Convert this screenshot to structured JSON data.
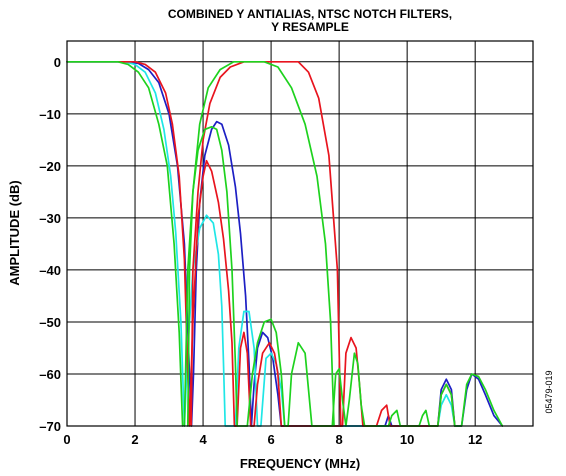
{
  "chart_data": {
    "type": "line",
    "title_line1": "COMBINED Y ANTIALIAS, NTSC NOTCH FILTERS,",
    "title_line2": "Y RESAMPLE",
    "xlabel": "FREQUENCY (MHz)",
    "ylabel": "AMPLITUDE (dB)",
    "figure_id": "05479-019",
    "xlim": [
      0,
      13.7
    ],
    "ylim": [
      -70,
      4
    ],
    "grid": true,
    "x_ticks": [
      0,
      2,
      4,
      6,
      8,
      10,
      12
    ],
    "x_tick_labels": [
      "0",
      "2",
      "4",
      "6",
      "8",
      "10",
      "12"
    ],
    "y_ticks": [
      0,
      -10,
      -20,
      -30,
      -40,
      -50,
      -60,
      -70
    ],
    "y_tick_labels": [
      "0",
      "–10",
      "–20",
      "–30",
      "–40",
      "–50",
      "–60",
      "–70"
    ],
    "colors": {
      "red": "#e8141e",
      "blue": "#1d1fc4",
      "cyan": "#1fe6e6",
      "green": "#1ed21e"
    },
    "series": [
      {
        "color": "blue",
        "points": [
          [
            0,
            0
          ],
          [
            1.8,
            0
          ],
          [
            2.1,
            -0.3
          ],
          [
            2.4,
            -1.5
          ],
          [
            2.7,
            -4
          ],
          [
            3.0,
            -10
          ],
          [
            3.25,
            -20
          ],
          [
            3.45,
            -35
          ],
          [
            3.6,
            -60
          ],
          [
            3.66,
            -70
          ],
          [
            3.72,
            -60
          ],
          [
            3.8,
            -40
          ],
          [
            3.9,
            -27
          ],
          [
            4.05,
            -18
          ],
          [
            4.25,
            -13
          ],
          [
            4.4,
            -11.5
          ],
          [
            4.55,
            -12
          ],
          [
            4.75,
            -16
          ],
          [
            4.95,
            -24
          ],
          [
            5.1,
            -33
          ],
          [
            5.25,
            -45
          ],
          [
            5.35,
            -58
          ],
          [
            5.42,
            -70
          ],
          [
            5.5,
            -62
          ],
          [
            5.6,
            -55
          ],
          [
            5.75,
            -52
          ],
          [
            5.9,
            -53
          ],
          [
            6.05,
            -57
          ],
          [
            6.2,
            -64
          ],
          [
            6.3,
            -70
          ],
          [
            9.35,
            -70
          ],
          [
            9.45,
            -68
          ],
          [
            9.55,
            -70
          ],
          [
            10.9,
            -70
          ],
          [
            11.0,
            -63
          ],
          [
            11.15,
            -61
          ],
          [
            11.3,
            -63
          ],
          [
            11.4,
            -70
          ],
          [
            11.6,
            -70
          ],
          [
            11.75,
            -63
          ],
          [
            11.9,
            -60
          ],
          [
            12.1,
            -61
          ],
          [
            12.3,
            -64
          ],
          [
            12.55,
            -68
          ],
          [
            12.8,
            -70
          ]
        ]
      },
      {
        "color": "cyan",
        "points": [
          [
            0,
            0
          ],
          [
            1.7,
            0
          ],
          [
            2.0,
            -0.5
          ],
          [
            2.3,
            -2
          ],
          [
            2.6,
            -6
          ],
          [
            2.85,
            -13
          ],
          [
            3.05,
            -22
          ],
          [
            3.2,
            -33
          ],
          [
            3.35,
            -50
          ],
          [
            3.45,
            -70
          ],
          [
            3.55,
            -55
          ],
          [
            3.7,
            -40
          ],
          [
            3.9,
            -32
          ],
          [
            4.1,
            -29.5
          ],
          [
            4.3,
            -31
          ],
          [
            4.45,
            -37
          ],
          [
            4.55,
            -47
          ],
          [
            4.6,
            -58
          ],
          [
            4.65,
            -70
          ],
          [
            4.95,
            -70
          ],
          [
            5.05,
            -55
          ],
          [
            5.2,
            -48
          ],
          [
            5.35,
            -48
          ],
          [
            5.5,
            -55
          ],
          [
            5.6,
            -70
          ],
          [
            5.7,
            -70
          ],
          [
            5.85,
            -57
          ],
          [
            6.0,
            -56
          ],
          [
            6.15,
            -58
          ],
          [
            6.3,
            -63
          ],
          [
            6.4,
            -70
          ],
          [
            10.9,
            -70
          ],
          [
            11.0,
            -66
          ],
          [
            11.15,
            -64
          ],
          [
            11.3,
            -66
          ],
          [
            11.4,
            -70
          ]
        ]
      },
      {
        "color": "red",
        "points": [
          [
            0,
            0
          ],
          [
            2.0,
            0
          ],
          [
            2.3,
            -0.5
          ],
          [
            2.6,
            -2
          ],
          [
            2.9,
            -6
          ],
          [
            3.1,
            -12
          ],
          [
            3.3,
            -22
          ],
          [
            3.45,
            -38
          ],
          [
            3.55,
            -60
          ],
          [
            3.6,
            -70
          ],
          [
            3.7,
            -50
          ],
          [
            3.85,
            -30
          ],
          [
            4.0,
            -22
          ],
          [
            4.1,
            -19
          ],
          [
            4.25,
            -21
          ],
          [
            4.45,
            -27
          ],
          [
            4.6,
            -34
          ],
          [
            4.75,
            -44
          ],
          [
            4.85,
            -54
          ],
          [
            4.92,
            -70
          ],
          [
            5.0,
            -70
          ],
          [
            5.1,
            -55
          ],
          [
            5.2,
            -52
          ],
          [
            5.3,
            -56
          ],
          [
            5.4,
            -70
          ],
          [
            5.5,
            -70
          ],
          [
            5.6,
            -62
          ],
          [
            5.75,
            -56
          ],
          [
            5.95,
            -54
          ],
          [
            6.1,
            -56
          ],
          [
            6.2,
            -60
          ],
          [
            6.3,
            -70
          ],
          [
            8.1,
            -70
          ],
          [
            8.2,
            -56
          ],
          [
            8.35,
            -53
          ],
          [
            8.5,
            -55
          ],
          [
            8.6,
            -62
          ],
          [
            8.7,
            -70
          ],
          [
            9.1,
            -70
          ],
          [
            9.25,
            -67
          ],
          [
            9.4,
            -66
          ],
          [
            9.5,
            -70
          ],
          [
            10.9,
            -70
          ],
          [
            11.0,
            -64
          ],
          [
            11.15,
            -62
          ],
          [
            11.3,
            -64
          ],
          [
            11.4,
            -70
          ]
        ]
      },
      {
        "color": "red",
        "points": [
          [
            3.65,
            -70
          ],
          [
            3.7,
            -40
          ],
          [
            3.85,
            -25
          ],
          [
            4.0,
            -15
          ],
          [
            4.2,
            -8
          ],
          [
            4.5,
            -3
          ],
          [
            4.8,
            -1
          ],
          [
            5.2,
            0
          ],
          [
            6.8,
            0
          ],
          [
            7.1,
            -2
          ],
          [
            7.4,
            -7
          ],
          [
            7.7,
            -18
          ],
          [
            7.95,
            -40
          ],
          [
            8.05,
            -70
          ]
        ]
      },
      {
        "color": "green",
        "points": [
          [
            0,
            0
          ],
          [
            1.5,
            0
          ],
          [
            1.8,
            -0.5
          ],
          [
            2.1,
            -2
          ],
          [
            2.4,
            -5
          ],
          [
            2.7,
            -12
          ],
          [
            2.95,
            -20
          ],
          [
            3.15,
            -35
          ],
          [
            3.3,
            -52
          ],
          [
            3.4,
            -70
          ]
        ]
      },
      {
        "color": "green",
        "points": [
          [
            3.55,
            -70
          ],
          [
            3.6,
            -40
          ],
          [
            3.7,
            -25
          ],
          [
            3.85,
            -17
          ],
          [
            4.05,
            -13
          ],
          [
            4.25,
            -12.5
          ],
          [
            4.4,
            -13
          ],
          [
            4.55,
            -17
          ],
          [
            4.7,
            -25
          ],
          [
            4.85,
            -40
          ],
          [
            4.95,
            -58
          ],
          [
            5.0,
            -70
          ],
          [
            5.3,
            -70
          ],
          [
            5.45,
            -60
          ],
          [
            5.6,
            -54
          ],
          [
            5.8,
            -50
          ],
          [
            6.0,
            -49.5
          ],
          [
            6.15,
            -52
          ],
          [
            6.3,
            -60
          ],
          [
            6.4,
            -70
          ],
          [
            6.5,
            -70
          ],
          [
            6.6,
            -60
          ],
          [
            6.8,
            -54
          ],
          [
            7.0,
            -56
          ],
          [
            7.1,
            -63
          ],
          [
            7.2,
            -70
          ],
          [
            7.8,
            -70
          ],
          [
            7.9,
            -60
          ],
          [
            8.0,
            -59
          ],
          [
            8.1,
            -65
          ],
          [
            8.2,
            -70
          ],
          [
            8.3,
            -65
          ],
          [
            8.45,
            -56
          ],
          [
            8.55,
            -58
          ],
          [
            8.65,
            -66
          ],
          [
            8.75,
            -70
          ],
          [
            9.45,
            -70
          ],
          [
            9.55,
            -68
          ],
          [
            9.7,
            -67
          ],
          [
            9.8,
            -70
          ],
          [
            10.35,
            -70
          ],
          [
            10.45,
            -68
          ],
          [
            10.55,
            -67
          ],
          [
            10.65,
            -70
          ],
          [
            10.9,
            -70
          ],
          [
            11.0,
            -64
          ],
          [
            11.15,
            -62
          ],
          [
            11.3,
            -64
          ],
          [
            11.4,
            -70
          ],
          [
            11.6,
            -70
          ],
          [
            11.75,
            -62
          ],
          [
            11.9,
            -60
          ],
          [
            12.1,
            -60.5
          ],
          [
            12.3,
            -63
          ],
          [
            12.55,
            -67
          ],
          [
            12.8,
            -70
          ]
        ]
      },
      {
        "color": "green",
        "points": [
          [
            3.45,
            -70
          ],
          [
            3.55,
            -40
          ],
          [
            3.7,
            -25
          ],
          [
            3.9,
            -12
          ],
          [
            4.15,
            -5
          ],
          [
            4.5,
            -1.5
          ],
          [
            4.9,
            0
          ],
          [
            5.8,
            0
          ],
          [
            6.2,
            -1
          ],
          [
            6.6,
            -5
          ],
          [
            7.0,
            -12
          ],
          [
            7.35,
            -22
          ],
          [
            7.6,
            -35
          ],
          [
            7.75,
            -50
          ],
          [
            7.85,
            -70
          ]
        ]
      }
    ]
  }
}
